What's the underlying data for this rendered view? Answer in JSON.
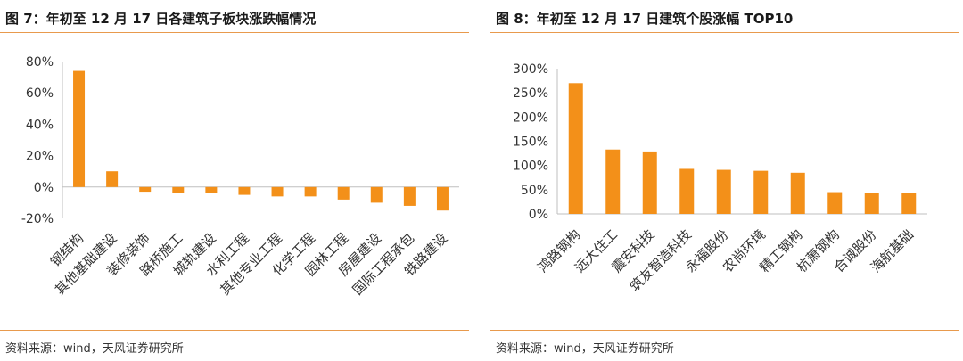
{
  "left": {
    "title": "图 7：年初至 12 月 17 日各建筑子板块涨跌幅情况",
    "source": "资料来源：wind，天风证券研究所"
  },
  "right": {
    "title": "图 8：年初至 12 月 17 日建筑个股涨幅 TOP10",
    "source": "资料来源：wind，天风证券研究所"
  },
  "colors": {
    "bar": "#f39019",
    "axis": "#bfbfbf",
    "rule": "#e89a4d"
  },
  "chart_data": [
    {
      "type": "bar",
      "title": "",
      "xlabel": "",
      "ylabel": "",
      "categories": [
        "钢结构",
        "其他基础建设",
        "装修装饰",
        "路桥施工",
        "城轨建设",
        "水利工程",
        "其他专业工程",
        "化学工程",
        "园林工程",
        "房屋建设",
        "国际工程承包",
        "铁路建设"
      ],
      "values": [
        74,
        10,
        -3,
        -4,
        -4,
        -5,
        -6,
        -6,
        -8,
        -10,
        -12,
        -15
      ],
      "ylim": [
        -20,
        80
      ],
      "yticks": [
        -20,
        0,
        20,
        40,
        60,
        80
      ],
      "ytick_labels": [
        "-20%",
        "0%",
        "20%",
        "40%",
        "60%",
        "80%"
      ],
      "grid": false
    },
    {
      "type": "bar",
      "title": "",
      "xlabel": "",
      "ylabel": "",
      "categories": [
        "鸿路钢构",
        "远大住工",
        "震安科技",
        "筑友智造科技",
        "永福股份",
        "农尚环境",
        "精工钢构",
        "杭萧钢构",
        "合诚股份",
        "海航基础"
      ],
      "values": [
        270,
        133,
        129,
        93,
        91,
        89,
        85,
        45,
        44,
        43
      ],
      "ylim": [
        0,
        300
      ],
      "yticks": [
        0,
        50,
        100,
        150,
        200,
        250,
        300
      ],
      "ytick_labels": [
        "0%",
        "50%",
        "100%",
        "150%",
        "200%",
        "250%",
        "300%"
      ],
      "grid": false
    }
  ]
}
